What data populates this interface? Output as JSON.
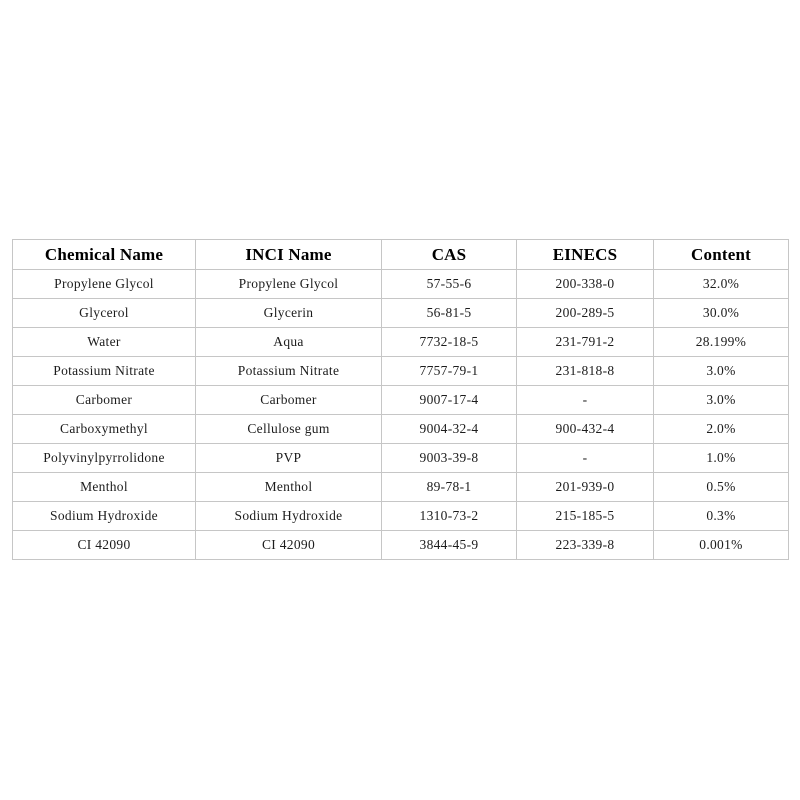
{
  "colors": {
    "page_background": "#ffffff",
    "table_border": "#c6c6c6",
    "header_text": "#000000",
    "body_text": "#1c1c1c"
  },
  "table": {
    "columns": [
      "Chemical Name",
      "INCI Name",
      "CAS",
      "EINECS",
      "Content"
    ],
    "rows": [
      [
        "Propylene Glycol",
        "Propylene Glycol",
        "57-55-6",
        "200-338-0",
        "32.0%"
      ],
      [
        "Glycerol",
        "Glycerin",
        "56-81-5",
        "200-289-5",
        "30.0%"
      ],
      [
        "Water",
        "Aqua",
        "7732-18-5",
        "231-791-2",
        "28.199%"
      ],
      [
        "Potassium Nitrate",
        "Potassium Nitrate",
        "7757-79-1",
        "231-818-8",
        "3.0%"
      ],
      [
        "Carbomer",
        "Carbomer",
        "9007-17-4",
        "-",
        "3.0%"
      ],
      [
        "Carboxymethyl",
        "Cellulose gum",
        "9004-32-4",
        "900-432-4",
        "2.0%"
      ],
      [
        "Polyvinylpyrrolidone",
        "PVP",
        "9003-39-8",
        "-",
        "1.0%"
      ],
      [
        "Menthol",
        "Menthol",
        "89-78-1",
        "201-939-0",
        "0.5%"
      ],
      [
        "Sodium Hydroxide",
        "Sodium Hydroxide",
        "1310-73-2",
        "215-185-5",
        "0.3%"
      ],
      [
        "CI 42090",
        "CI 42090",
        "3844-45-9",
        "223-339-8",
        "0.001%"
      ]
    ]
  }
}
